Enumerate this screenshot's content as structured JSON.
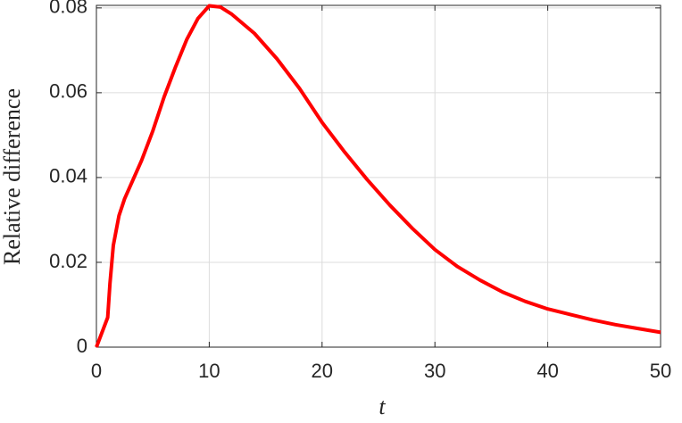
{
  "chart_data": {
    "type": "line",
    "x_label": "t",
    "y_label": "Relative difference",
    "x": [
      0,
      0.5,
      1,
      1.2,
      1.5,
      2,
      2.5,
      3,
      4,
      5,
      6,
      7,
      8,
      9,
      10,
      11,
      12,
      14,
      16,
      18,
      20,
      22,
      24,
      26,
      28,
      30,
      32,
      34,
      36,
      38,
      40,
      42,
      44,
      46,
      48,
      50
    ],
    "series": [
      {
        "name": "Relative difference",
        "color": "#ff0000",
        "values": [
          0,
          0.0035,
          0.007,
          0.015,
          0.024,
          0.031,
          0.035,
          0.038,
          0.044,
          0.051,
          0.059,
          0.066,
          0.0725,
          0.0775,
          0.0805,
          0.0802,
          0.0785,
          0.074,
          0.068,
          0.061,
          0.053,
          0.046,
          0.0395,
          0.0335,
          0.028,
          0.023,
          0.019,
          0.0158,
          0.013,
          0.0108,
          0.009,
          0.0077,
          0.0064,
          0.0053,
          0.0044,
          0.0035
        ]
      }
    ],
    "xlim": [
      0,
      50
    ],
    "ylim": [
      0,
      0.0806
    ],
    "xticks": [
      0,
      10,
      20,
      30,
      40,
      50
    ],
    "yticks": [
      0,
      0.02,
      0.04,
      0.06,
      0.08
    ],
    "grid": true
  }
}
